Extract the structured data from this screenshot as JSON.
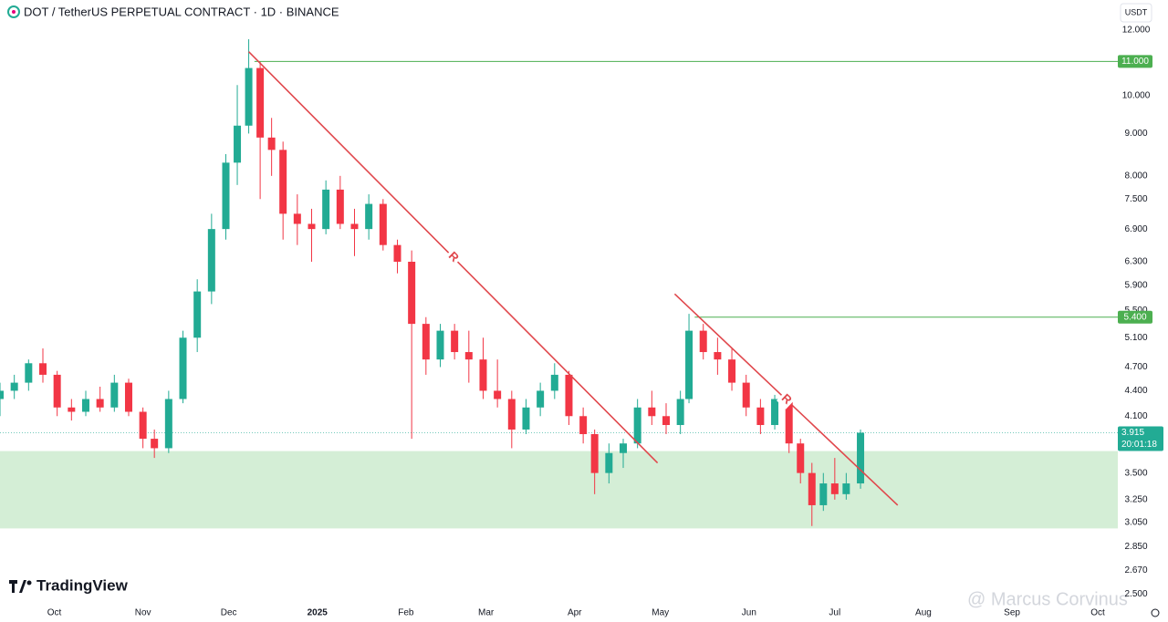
{
  "chart_data": {
    "type": "candlestick",
    "title": "DOT / TetherUS PERPETUAL CONTRACT · 1D · BINANCE",
    "currency": "USDT",
    "brand": "TradingView",
    "watermark": "@ Marcus Corvinus",
    "log_scale": true,
    "up_color": "#22ab94",
    "down_color": "#f23645",
    "ylim": [
      2.445,
      13.05
    ],
    "yticks": [
      {
        "value": 12,
        "label": "12.000"
      },
      {
        "value": 10,
        "label": "10.000"
      },
      {
        "value": 9,
        "label": "9.000"
      },
      {
        "value": 8,
        "label": "8.000"
      },
      {
        "value": 7.5,
        "label": "7.500"
      },
      {
        "value": 6.9,
        "label": "6.900"
      },
      {
        "value": 6.3,
        "label": "6.300"
      },
      {
        "value": 5.9,
        "label": "5.900"
      },
      {
        "value": 5.5,
        "label": "5.500"
      },
      {
        "value": 5.1,
        "label": "5.100"
      },
      {
        "value": 4.7,
        "label": "4.700"
      },
      {
        "value": 4.4,
        "label": "4.400"
      },
      {
        "value": 4.1,
        "label": "4.100"
      },
      {
        "value": 3.5,
        "label": "3.500"
      },
      {
        "value": 3.25,
        "label": "3.250"
      },
      {
        "value": 3.05,
        "label": "3.050"
      },
      {
        "value": 2.85,
        "label": "2.850"
      },
      {
        "value": 2.67,
        "label": "2.670"
      },
      {
        "value": 2.5,
        "label": "2.500"
      }
    ],
    "xlim": [
      "2024-09-12",
      "2025-10-08"
    ],
    "xticks": [
      {
        "value": "2024-10-01",
        "label": "Oct"
      },
      {
        "value": "2024-11-01",
        "label": "Nov"
      },
      {
        "value": "2024-12-01",
        "label": "Dec"
      },
      {
        "value": "2025-01-01",
        "label": "2025"
      },
      {
        "value": "2025-02-01",
        "label": "Feb"
      },
      {
        "value": "2025-03-01",
        "label": "Mar"
      },
      {
        "value": "2025-04-01",
        "label": "Apr"
      },
      {
        "value": "2025-05-01",
        "label": "May"
      },
      {
        "value": "2025-06-01",
        "label": "Jun"
      },
      {
        "value": "2025-07-01",
        "label": "Jul"
      },
      {
        "value": "2025-08-01",
        "label": "Aug"
      },
      {
        "value": "2025-09-01",
        "label": "Sep"
      },
      {
        "value": "2025-10-01",
        "label": "Oct"
      }
    ],
    "x": [
      "2024-09-12",
      "2024-09-17",
      "2024-09-22",
      "2024-09-27",
      "2024-10-02",
      "2024-10-07",
      "2024-10-12",
      "2024-10-17",
      "2024-10-22",
      "2024-10-27",
      "2024-11-01",
      "2024-11-05",
      "2024-11-10",
      "2024-11-15",
      "2024-11-20",
      "2024-11-25",
      "2024-11-30",
      "2024-12-04",
      "2024-12-08",
      "2024-12-12",
      "2024-12-16",
      "2024-12-20",
      "2024-12-25",
      "2024-12-30",
      "2025-01-04",
      "2025-01-09",
      "2025-01-14",
      "2025-01-19",
      "2025-01-24",
      "2025-01-29",
      "2025-02-03",
      "2025-02-08",
      "2025-02-13",
      "2025-02-18",
      "2025-02-23",
      "2025-02-28",
      "2025-03-05",
      "2025-03-10",
      "2025-03-15",
      "2025-03-20",
      "2025-03-25",
      "2025-03-30",
      "2025-04-04",
      "2025-04-08",
      "2025-04-13",
      "2025-04-18",
      "2025-04-23",
      "2025-04-28",
      "2025-05-03",
      "2025-05-08",
      "2025-05-11",
      "2025-05-16",
      "2025-05-21",
      "2025-05-26",
      "2025-05-31",
      "2025-06-05",
      "2025-06-10",
      "2025-06-15",
      "2025-06-19",
      "2025-06-23",
      "2025-06-27",
      "2025-07-01",
      "2025-07-05",
      "2025-07-10"
    ],
    "open": [
      4.3,
      4.4,
      4.5,
      4.75,
      4.6,
      4.2,
      4.15,
      4.3,
      4.2,
      4.5,
      4.15,
      3.85,
      3.75,
      4.3,
      5.1,
      5.8,
      6.9,
      8.3,
      9.2,
      10.8,
      8.9,
      8.6,
      7.2,
      7.0,
      6.9,
      7.7,
      7.0,
      6.9,
      7.4,
      6.6,
      6.3,
      5.3,
      4.8,
      5.2,
      4.9,
      4.8,
      4.4,
      4.3,
      3.95,
      4.2,
      4.4,
      4.6,
      4.1,
      3.9,
      3.5,
      3.7,
      3.8,
      4.2,
      4.1,
      4.0,
      4.3,
      5.2,
      4.9,
      4.8,
      4.5,
      4.2,
      4.0,
      4.3,
      3.8,
      3.5,
      3.2,
      3.4,
      3.3,
      3.4
    ],
    "high": [
      4.5,
      4.6,
      4.8,
      4.95,
      4.65,
      4.3,
      4.4,
      4.45,
      4.6,
      4.55,
      4.2,
      3.95,
      4.4,
      5.2,
      6.0,
      7.2,
      8.5,
      10.3,
      11.7,
      11.0,
      9.4,
      8.8,
      7.6,
      7.3,
      7.9,
      8.0,
      7.3,
      7.6,
      7.5,
      6.7,
      6.5,
      5.4,
      5.3,
      5.3,
      5.2,
      5.1,
      4.8,
      4.4,
      4.3,
      4.5,
      4.75,
      4.65,
      4.2,
      3.95,
      3.8,
      3.85,
      4.3,
      4.4,
      4.25,
      4.4,
      5.45,
      5.3,
      5.1,
      4.95,
      4.6,
      4.3,
      4.35,
      4.35,
      3.85,
      3.6,
      3.5,
      3.65,
      3.5,
      3.95
    ],
    "low": [
      4.1,
      4.3,
      4.4,
      4.5,
      4.1,
      4.05,
      4.1,
      4.15,
      4.15,
      4.1,
      3.75,
      3.65,
      3.7,
      4.25,
      4.9,
      5.6,
      6.7,
      7.8,
      9.0,
      7.5,
      8.0,
      6.7,
      6.6,
      6.3,
      6.8,
      6.9,
      6.4,
      6.7,
      6.5,
      6.1,
      3.85,
      4.6,
      4.7,
      4.8,
      4.5,
      4.3,
      4.2,
      3.75,
      3.9,
      4.1,
      4.3,
      4.0,
      3.8,
      3.3,
      3.4,
      3.55,
      3.75,
      4.0,
      3.9,
      3.9,
      4.25,
      4.8,
      4.6,
      4.4,
      4.1,
      3.9,
      3.95,
      3.7,
      3.4,
      3.02,
      3.15,
      3.25,
      3.25,
      3.35
    ],
    "close": [
      4.4,
      4.5,
      4.75,
      4.6,
      4.2,
      4.15,
      4.3,
      4.2,
      4.5,
      4.15,
      3.85,
      3.75,
      4.3,
      5.1,
      5.8,
      6.9,
      8.3,
      9.2,
      10.8,
      8.9,
      8.6,
      7.2,
      7.0,
      6.9,
      7.7,
      7.0,
      6.9,
      7.4,
      6.6,
      6.3,
      5.3,
      4.8,
      5.2,
      4.9,
      4.8,
      4.4,
      4.3,
      3.95,
      4.2,
      4.4,
      4.6,
      4.1,
      3.9,
      3.5,
      3.7,
      3.8,
      4.2,
      4.1,
      4.0,
      4.3,
      5.2,
      4.9,
      4.8,
      4.5,
      4.2,
      4.0,
      4.3,
      3.8,
      3.5,
      3.2,
      3.4,
      3.3,
      3.4,
      3.915
    ],
    "hlines": [
      {
        "value": 11,
        "label": "11.000",
        "start": "2024-12-10",
        "color": "#4caf50"
      },
      {
        "value": 5.4,
        "label": "5.400",
        "start": "2025-05-13",
        "color": "#4caf50"
      }
    ],
    "zone": {
      "top": 3.72,
      "bottom": 3.0,
      "color": "#d4eed6"
    },
    "trendlines": [
      {
        "x": [
          "2024-12-08",
          "2025-04-30"
        ],
        "y": [
          11.3,
          3.6
        ],
        "label": "R",
        "color": "#e0474c"
      },
      {
        "x": [
          "2025-05-06",
          "2025-07-23"
        ],
        "y": [
          5.76,
          3.2
        ],
        "label": "R",
        "color": "#e0474c"
      }
    ],
    "last_price": {
      "value": 3.915,
      "label": "3.915",
      "countdown": "20:01:18",
      "color": "#22ab94"
    }
  }
}
